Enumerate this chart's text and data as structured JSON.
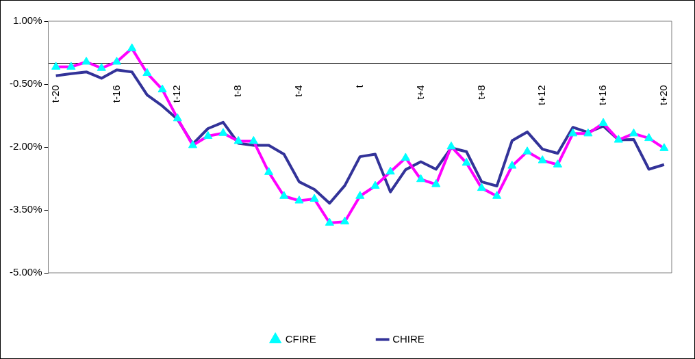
{
  "chart_data": {
    "type": "line",
    "categories": [
      "t-20",
      null,
      null,
      null,
      "t-16",
      null,
      null,
      null,
      "t-12",
      null,
      null,
      null,
      "t-8",
      null,
      null,
      null,
      "t-4",
      null,
      null,
      null,
      "t",
      null,
      null,
      null,
      "t+4",
      null,
      null,
      null,
      "t+8",
      null,
      null,
      null,
      "t+12",
      null,
      null,
      null,
      "t+16",
      null,
      null,
      null,
      "t+20"
    ],
    "series": [
      {
        "name": "CFIRE",
        "color": "#ff00ff",
        "marker": "triangle",
        "values": [
          -0.09,
          -0.09,
          0.03,
          -0.12,
          0.03,
          0.35,
          -0.24,
          -0.63,
          -1.32,
          -1.96,
          -1.74,
          -1.67,
          -1.86,
          -1.86,
          -2.6,
          -3.17,
          -3.28,
          -3.24,
          -3.81,
          -3.78,
          -3.17,
          -2.93,
          -2.59,
          -2.26,
          -2.77,
          -2.89,
          -1.99,
          -2.38,
          -2.98,
          -3.17,
          -2.45,
          -2.11,
          -2.32,
          -2.42,
          -1.68,
          -1.68,
          -1.43,
          -1.83,
          -1.68,
          -1.79,
          -2.03
        ]
      },
      {
        "name": "CHIRE",
        "color": "#333399",
        "marker": "none",
        "values": [
          -0.3,
          -0.25,
          -0.21,
          -0.36,
          -0.16,
          -0.21,
          -0.76,
          -1.02,
          -1.34,
          -1.93,
          -1.56,
          -1.41,
          -1.91,
          -1.96,
          -1.96,
          -2.17,
          -2.83,
          -3.01,
          -3.34,
          -2.92,
          -2.23,
          -2.17,
          -3.07,
          -2.54,
          -2.35,
          -2.53,
          -2.02,
          -2.11,
          -2.83,
          -2.93,
          -1.85,
          -1.64,
          -2.05,
          -2.15,
          -1.53,
          -1.65,
          -1.5,
          -1.83,
          -1.82,
          -2.53,
          -2.42
        ]
      }
    ],
    "ylim": [
      -5,
      1
    ],
    "yticks": [
      {
        "value": 1,
        "label": "1.00%"
      },
      {
        "value": -0.5,
        "label": "-0.50%"
      },
      {
        "value": -2,
        "label": "-2.00%"
      },
      {
        "value": -3.5,
        "label": "-3.50%"
      },
      {
        "value": -5,
        "label": "-5.00%"
      }
    ],
    "grid": false,
    "legend": "bottom"
  }
}
